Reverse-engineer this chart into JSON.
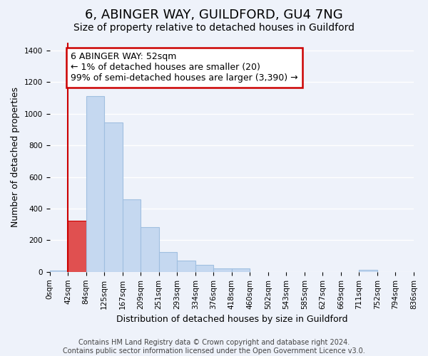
{
  "title": "6, ABINGER WAY, GUILDFORD, GU4 7NG",
  "subtitle": "Size of property relative to detached houses in Guildford",
  "xlabel": "Distribution of detached houses by size in Guildford",
  "ylabel": "Number of detached properties",
  "bin_labels": [
    "0sqm",
    "42sqm",
    "84sqm",
    "125sqm",
    "167sqm",
    "209sqm",
    "251sqm",
    "293sqm",
    "334sqm",
    "376sqm",
    "418sqm",
    "460sqm",
    "502sqm",
    "543sqm",
    "585sqm",
    "627sqm",
    "669sqm",
    "711sqm",
    "752sqm",
    "794sqm",
    "836sqm"
  ],
  "bar_heights": [
    10,
    325,
    1110,
    945,
    460,
    285,
    125,
    70,
    45,
    20,
    20,
    0,
    0,
    0,
    0,
    0,
    0,
    12,
    0,
    0
  ],
  "bar_color": "#c5d8f0",
  "bar_edge_color": "#a0bfe0",
  "highlight_bar_index": 1,
  "highlight_bar_color": "#e05050",
  "highlight_bar_edge_color": "#cc0000",
  "red_line_x": 1,
  "annotation_text": "6 ABINGER WAY: 52sqm\n← 1% of detached houses are smaller (20)\n99% of semi-detached houses are larger (3,390) →",
  "annotation_box_facecolor": "#ffffff",
  "annotation_box_edgecolor": "#cc0000",
  "ylim": [
    0,
    1450
  ],
  "yticks": [
    0,
    200,
    400,
    600,
    800,
    1000,
    1200,
    1400
  ],
  "footer_text": "Contains HM Land Registry data © Crown copyright and database right 2024.\nContains public sector information licensed under the Open Government Licence v3.0.",
  "background_color": "#eef2fa",
  "grid_color": "#ffffff",
  "title_fontsize": 13,
  "subtitle_fontsize": 10,
  "axis_label_fontsize": 9,
  "tick_fontsize": 7.5,
  "annotation_fontsize": 9,
  "footer_fontsize": 7
}
